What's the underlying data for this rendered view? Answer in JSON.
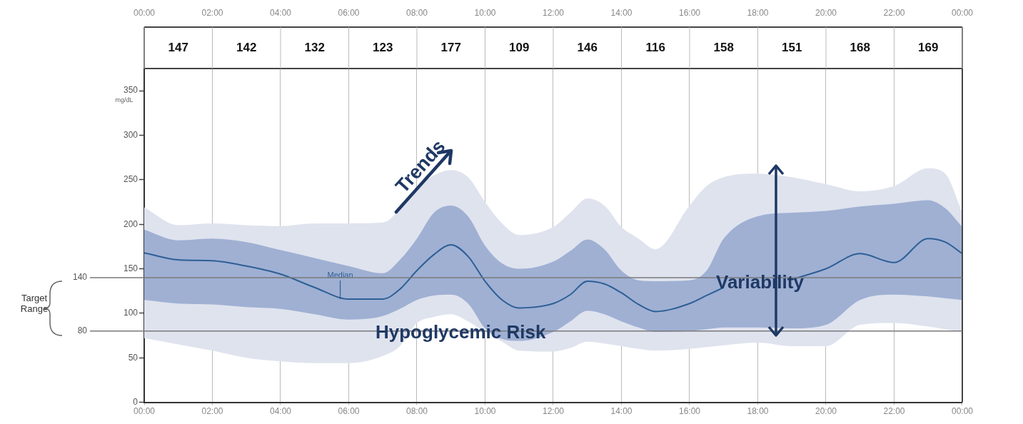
{
  "chart_data": {
    "type": "line",
    "ylabel": "mg/dL",
    "x": [
      0,
      1,
      2,
      3,
      4,
      5,
      6,
      7,
      7.5,
      8,
      8.5,
      9,
      9.5,
      10,
      10.5,
      11,
      12,
      12.5,
      13,
      13.5,
      14,
      14.5,
      15,
      16,
      16.5,
      17,
      18,
      19,
      20,
      21,
      22,
      23,
      23.5,
      24
    ],
    "series": [
      {
        "color": "#dfe3ee",
        "values": [
          null,
          null,
          null,
          null,
          null,
          null,
          null,
          null,
          null,
          null,
          null,
          null,
          null,
          null,
          null,
          null,
          null,
          null,
          null,
          null,
          null,
          null,
          null,
          null,
          null,
          null,
          null,
          null,
          null,
          null,
          null,
          null,
          null,
          null
        ],
        "lower": [
          72,
          65,
          58,
          50,
          46,
          44,
          44,
          52,
          63,
          89,
          96,
          99,
          91,
          79,
          68,
          58,
          57,
          61,
          68,
          66,
          63,
          60,
          58,
          60,
          62,
          64,
          67,
          63,
          63,
          87,
          89,
          85,
          82,
          79
        ],
        "upper": [
          219,
          199,
          201,
          199,
          198,
          201,
          201,
          202,
          217,
          241,
          255,
          261,
          253,
          225,
          201,
          188,
          197,
          213,
          229,
          221,
          197,
          184,
          172,
          221,
          243,
          253,
          257,
          253,
          245,
          237,
          243,
          263,
          257,
          213
        ]
      },
      {
        "color": "#9fb0d3",
        "values": [
          null,
          null,
          null,
          null,
          null,
          null,
          null,
          null,
          null,
          null,
          null,
          null,
          null,
          null,
          null,
          null,
          null,
          null,
          null,
          null,
          null,
          null,
          null,
          null,
          null,
          null,
          null,
          null,
          null,
          null,
          null,
          null,
          null,
          null
        ],
        "lower": [
          115,
          111,
          110,
          107,
          105,
          99,
          93,
          97,
          105,
          115,
          120,
          121,
          111,
          83,
          71,
          69,
          79,
          91,
          103,
          99,
          91,
          84,
          79,
          80,
          82,
          84,
          84,
          83,
          87,
          115,
          121,
          119,
          117,
          115
        ],
        "upper": [
          194,
          182,
          184,
          180,
          171,
          162,
          153,
          145,
          160,
          184,
          213,
          221,
          209,
          176,
          156,
          150,
          158,
          170,
          183,
          172,
          148,
          137,
          136,
          137,
          148,
          184,
          209,
          213,
          215,
          220,
          223,
          227,
          218,
          197
        ]
      },
      {
        "color": "#2e5f95",
        "values": [
          168,
          160,
          159,
          153,
          144,
          129,
          116,
          116,
          127,
          148,
          166,
          177,
          164,
          136,
          115,
          106,
          111,
          121,
          136,
          133,
          123,
          110,
          102,
          111,
          120,
          129,
          null,
          138,
          150,
          167,
          157,
          184,
          180,
          167
        ]
      }
    ],
    "xlim": [
      0,
      24
    ],
    "xticks": [
      {
        "value": 0,
        "label": "00:00"
      },
      {
        "value": 2,
        "label": "02:00"
      },
      {
        "value": 4,
        "label": "04:00"
      },
      {
        "value": 6,
        "label": "06:00"
      },
      {
        "value": 8,
        "label": "08:00"
      },
      {
        "value": 10,
        "label": "10:00"
      },
      {
        "value": 12,
        "label": "12:00"
      },
      {
        "value": 14,
        "label": "14:00"
      },
      {
        "value": 16,
        "label": "16:00"
      },
      {
        "value": 18,
        "label": "18:00"
      },
      {
        "value": 20,
        "label": "20:00"
      },
      {
        "value": 22,
        "label": "22:00"
      },
      {
        "value": 24,
        "label": "00:00"
      }
    ],
    "x2lim": [
      0,
      24
    ],
    "x2ticks": [
      {
        "value": 0,
        "label": "00:00"
      },
      {
        "value": 2,
        "label": "02:00"
      },
      {
        "value": 4,
        "label": "04:00"
      },
      {
        "value": 6,
        "label": "06:00"
      },
      {
        "value": 8,
        "label": "08:00"
      },
      {
        "value": 10,
        "label": "10:00"
      },
      {
        "value": 12,
        "label": "12:00"
      },
      {
        "value": 14,
        "label": "14:00"
      },
      {
        "value": 16,
        "label": "16:00"
      },
      {
        "value": 18,
        "label": "18:00"
      },
      {
        "value": 20,
        "label": "20:00"
      },
      {
        "value": 22,
        "label": "22:00"
      },
      {
        "value": 24,
        "label": "00:00"
      }
    ],
    "ylim": [
      0,
      375
    ],
    "yticks": [
      0,
      50,
      100,
      150,
      200,
      250,
      300,
      350
    ],
    "grid": "x",
    "legend": false,
    "marker": "none",
    "line_style": "solid",
    "ref_lines": [
      {
        "axis": "y",
        "value": 140,
        "label": "140",
        "color": "#7a7a7a"
      },
      {
        "axis": "y",
        "value": 80,
        "label": "80",
        "color": "#7a7a7a"
      }
    ],
    "annotations": [
      "147",
      "142",
      "132",
      "123",
      "177",
      "109",
      "146",
      "116",
      "158",
      "151",
      "168",
      "169",
      {
        "text": "Median",
        "x": 5.75,
        "y": 116
      },
      "Target Range",
      "Trends",
      "Hypoglycemic Risk",
      "Variability"
    ]
  }
}
